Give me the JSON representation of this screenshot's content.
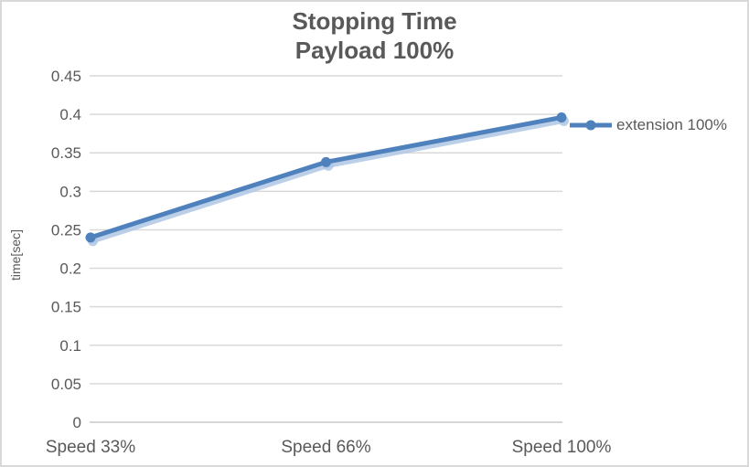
{
  "chart": {
    "title": "Stopping Time",
    "subtitle": "Payload 100%",
    "y_axis_title": "time[sec]",
    "legend": {
      "label": "extension 100%"
    }
  },
  "chart_data": {
    "type": "line",
    "title": "Stopping Time",
    "subtitle": "Payload 100%",
    "categories": [
      "Speed 33%",
      "Speed 66%",
      "Speed 100%"
    ],
    "series": [
      {
        "name": "extension 100%",
        "values": [
          0.24,
          0.338,
          0.396
        ]
      }
    ],
    "xlabel": "",
    "ylabel": "time[sec]",
    "ylim": [
      0,
      0.45
    ],
    "ytick_step": 0.05,
    "ytick_labels": [
      "0",
      "0.05",
      "0.1",
      "0.15",
      "0.2",
      "0.25",
      "0.3",
      "0.35",
      "0.4",
      "0.45"
    ],
    "grid": true,
    "legend_position": "right",
    "colors": {
      "series": "#4F81BD",
      "series_shadow": "#AFC7E4",
      "grid": "#D9D9D9",
      "baseline": "#C9C9C9",
      "text": "#595959",
      "title": "#595959"
    }
  }
}
